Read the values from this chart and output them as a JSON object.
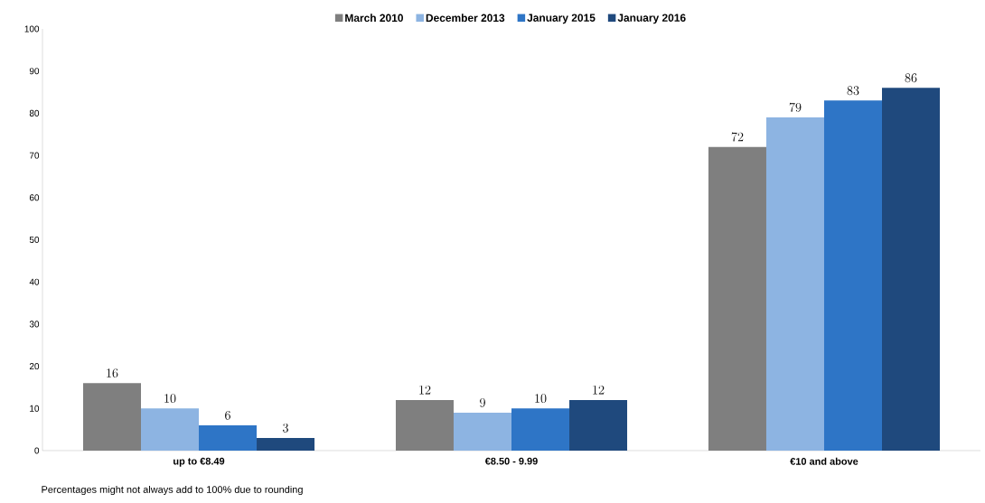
{
  "chart_data": {
    "type": "bar",
    "categories": [
      "up to €8.49",
      "€8.50 - 9.99",
      "€10 and above"
    ],
    "series": [
      {
        "name": "March  2010",
        "color": "#7f7f7f",
        "values": [
          16,
          12,
          72
        ]
      },
      {
        "name": "December 2013",
        "color": "#8db4e2",
        "values": [
          10,
          9,
          79
        ]
      },
      {
        "name": "January 2015",
        "color": "#2e75c6",
        "values": [
          6,
          10,
          83
        ]
      },
      {
        "name": "January 2016",
        "color": "#1f497d",
        "values": [
          3,
          12,
          86
        ]
      }
    ],
    "ylim": [
      0,
      100
    ],
    "yticks": [
      0,
      10,
      20,
      30,
      40,
      50,
      60,
      70,
      80,
      90,
      100
    ],
    "data_labels": true,
    "legend": "top",
    "grid": false,
    "annotations": [
      "Percentages might not always add to 100% due to rounding"
    ]
  }
}
